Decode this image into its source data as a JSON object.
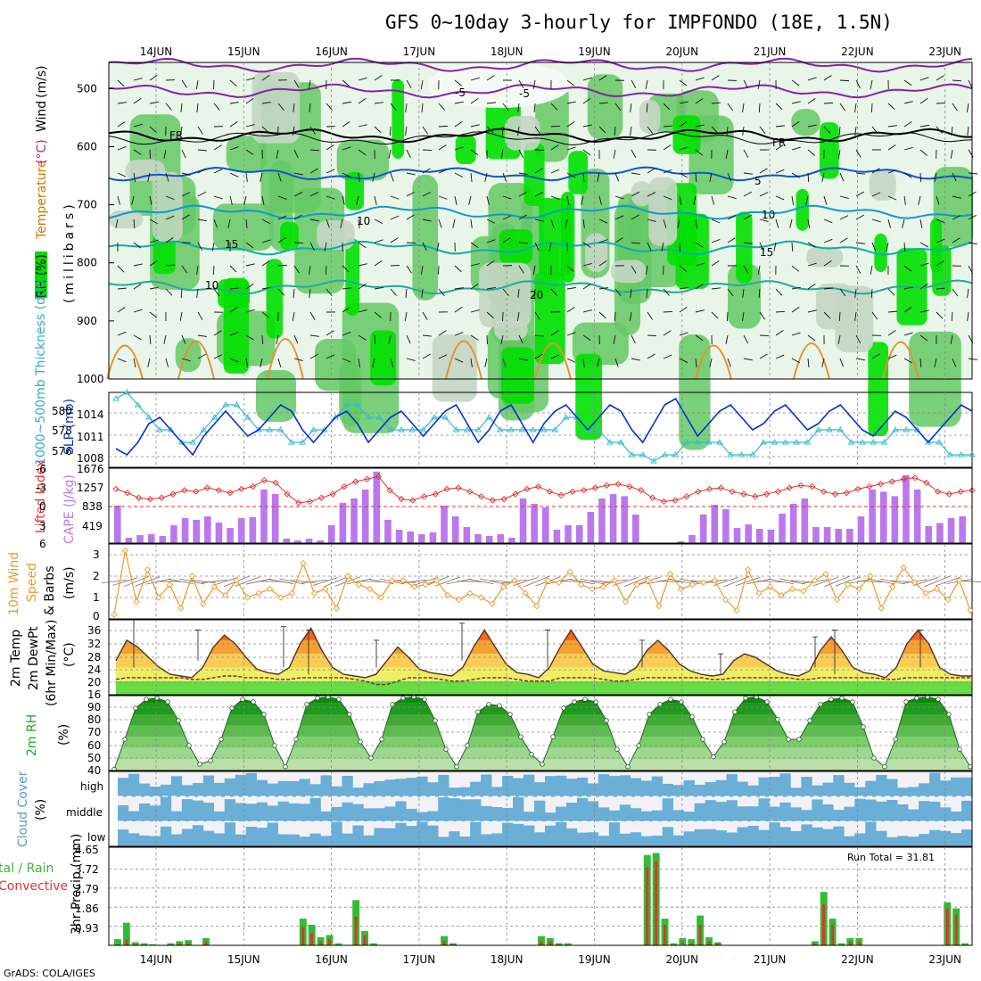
{
  "title": "GFS 0~10day 3-hourly for IMPFONDO (18E, 1.5N)",
  "credit": "GrADS: COLA/IGES",
  "days": [
    "14JUN",
    "15JUN",
    "16JUN",
    "17JUN",
    "18JUN",
    "19JUN",
    "20JUN",
    "21JUN",
    "22JUN",
    "23JUN"
  ],
  "colors": {
    "rh_light": "#a8d8a8",
    "rh_mid": "#64c864",
    "rh_bright": "#00e000",
    "slp": "#0033cc",
    "thick": "#33bbcc",
    "lifted": "#dd3333",
    "cape": "#bb77ee",
    "wind": "#ee9922",
    "rain": "#dd3333",
    "total": "#33bb33",
    "cloud": "#6baed6",
    "cloud_bg": "#f2f2f6"
  },
  "panels": {
    "upper": {
      "ylabel_parts": [
        "RH (%)",
        "Temperature",
        "(°C)",
        "Wind",
        "(m/s)"
      ],
      "ylabel2": "(millibars)",
      "ticks": [
        "500",
        "600",
        "700",
        "800",
        "900",
        "1000"
      ],
      "contour_labels": [
        "-5",
        "-5",
        "FR",
        "FR",
        "5",
        "10",
        "10",
        "15",
        "15",
        "20",
        "10"
      ]
    },
    "slp": {
      "ylabel": "SLP (mb)",
      "ylabel2": "1000~500mb Thickness (dm)",
      "ticks_left": [
        "580",
        "578",
        "576"
      ],
      "ticks_right": [
        "1014",
        "1011",
        "1008"
      ]
    },
    "cape": {
      "ylabel": "Lifted Index",
      "ylabel2": "CAPE (J/kg)",
      "ticks_left": [
        "-6",
        "-3",
        "0",
        "3",
        "6"
      ],
      "ticks_right": [
        "1676",
        "1257",
        "838",
        "419"
      ]
    },
    "wind10": {
      "ylabel": "10m Wind",
      "ylabel2": "Speed",
      "ylabel3": "& Barbs",
      "ylabel4": "(m/s)",
      "ticks": [
        "3",
        "2",
        "1",
        "0"
      ]
    },
    "t2m": {
      "ylabel": "2m Temp",
      "ylabel2": "2m DewPt",
      "ylabel3": "(6hr Min/Max)",
      "ylabel4": "(°C)",
      "ticks": [
        "36",
        "32",
        "28",
        "24",
        "20",
        "16"
      ]
    },
    "rh2m": {
      "ylabel": "2m RH",
      "ylabel2": "(%)",
      "ticks": [
        "90",
        "80",
        "70",
        "60",
        "50",
        "40"
      ]
    },
    "cloud": {
      "ylabel": "Cloud Cover",
      "ylabel2": "(%)",
      "levels": [
        "high",
        "middle",
        "low"
      ]
    },
    "precip": {
      "ylabel": "tal / Rain",
      "ylabel2": "Convective",
      "ylabel3": "3hr Precip (mm)",
      "ticks": [
        "4.65",
        "3.72",
        "2.79",
        "1.86",
        "0.93",
        "0"
      ],
      "run_total": "Run Total = 31.81"
    }
  },
  "chart_data": [
    {
      "type": "line",
      "title": "SLP (mb)",
      "ylim": [
        1006,
        1018
      ],
      "x_step_hours": 6,
      "series": [
        {
          "name": "SLP",
          "values": [
            1009,
            1008,
            1010,
            1013,
            1014,
            1012,
            1010,
            1008,
            1011,
            1013,
            1015,
            1013,
            1011,
            1012,
            1014,
            1016,
            1015,
            1012,
            1010,
            1012,
            1014,
            1015,
            1013,
            1010,
            1012,
            1014,
            1015,
            1013,
            1011,
            1013,
            1015,
            1016,
            1013,
            1010,
            1012,
            1015,
            1016,
            1013,
            1010,
            1013,
            1015,
            1016,
            1014,
            1012,
            1014,
            1016,
            1015,
            1012,
            1010,
            1013,
            1016,
            1017,
            1014,
            1011,
            1013,
            1015,
            1016,
            1014,
            1012,
            1013,
            1015,
            1016,
            1014,
            1012,
            1013,
            1015,
            1016,
            1014,
            1012,
            1011,
            1013,
            1015,
            1014,
            1012,
            1010,
            1012,
            1014,
            1016,
            1015
          ]
        }
      ]
    },
    {
      "type": "line",
      "title": "1000~500mb Thickness (dm)",
      "ylim": [
        575,
        581
      ],
      "series": [
        {
          "name": "Thickness",
          "values": [
            580.5,
            581,
            580,
            579,
            578,
            578,
            577,
            577,
            578,
            579,
            580,
            580,
            579,
            578,
            578,
            578,
            577,
            577,
            578,
            578,
            579,
            580,
            580,
            579,
            579,
            578,
            578,
            578,
            578,
            579,
            579,
            578,
            578,
            578,
            579,
            578,
            578,
            578,
            578,
            578,
            578,
            579,
            579,
            578,
            578,
            577,
            577,
            576,
            576,
            575.5,
            576,
            576,
            577,
            577,
            577,
            577,
            576,
            576,
            576,
            577,
            577,
            577,
            577,
            577,
            578,
            578,
            578,
            577,
            577,
            577,
            577,
            578,
            578,
            578,
            577,
            577,
            576,
            576,
            576
          ]
        }
      ]
    },
    {
      "type": "bar",
      "title": "CAPE (J/kg)",
      "ylim": [
        0,
        1676
      ],
      "values": [
        838,
        120,
        180,
        200,
        160,
        400,
        560,
        520,
        600,
        460,
        340,
        560,
        580,
        1200,
        1100,
        100,
        60,
        100,
        60,
        400,
        900,
        1000,
        1200,
        1600,
        520,
        300,
        260,
        200,
        240,
        840,
        600,
        360,
        200,
        160,
        200,
        120,
        1000,
        880,
        800,
        300,
        400,
        400,
        700,
        1000,
        1100,
        1050,
        640,
        0,
        0,
        0,
        40,
        180,
        640,
        860,
        760,
        340,
        420,
        320,
        300,
        660,
        880,
        1000,
        360,
        360,
        320,
        320,
        600,
        1200,
        1150,
        1050,
        1520,
        1200,
        380,
        450,
        560,
        600
      ]
    },
    {
      "type": "line",
      "title": "Lifted Index",
      "ylim": [
        -6,
        6
      ],
      "values": [
        -2.8,
        -2.2,
        -1.4,
        -1.2,
        -1.4,
        -2,
        -2.6,
        -2.4,
        -3,
        -2.6,
        -2.2,
        -2.8,
        -3.2,
        -4.2,
        -3.8,
        -2,
        -0.6,
        -0.8,
        -1.4,
        -2,
        -3.2,
        -4,
        -4.4,
        -4.8,
        -2.6,
        -1.2,
        -1,
        -1.6,
        -2,
        -2.8,
        -3,
        -2.4,
        -1.6,
        -1,
        -1.2,
        -2,
        -2.8,
        -3.2,
        -2.4,
        -1.8,
        -2.4,
        -2.6,
        -3,
        -3.4,
        -3.6,
        -3.2,
        -2.6,
        -1.4,
        -0.8,
        -1,
        -1.6,
        -2.4,
        -2.8,
        -3,
        -2.4,
        -2,
        -1.6,
        -2,
        -2.4,
        -3,
        -3.4,
        -3.2,
        -2.4,
        -2,
        -2.2,
        -2.8,
        -3.2,
        -3.6,
        -4,
        -4.4,
        -4.6,
        -3.8,
        -2.4,
        -2,
        -2.4,
        -2.6
      ]
    },
    {
      "type": "line",
      "title": "10m Wind Speed (m/s)",
      "ylim": [
        0,
        3.5
      ],
      "values": [
        0.2,
        3.2,
        0.8,
        2.3,
        1,
        1.6,
        0.5,
        2,
        0.7,
        1.5,
        1.1,
        1.8,
        1,
        1.2,
        1.4,
        1,
        1.2,
        2.6,
        1.2,
        1.4,
        0.5,
        2,
        1.6,
        1.4,
        1,
        1.8,
        1.8,
        1.5,
        1.6,
        1.8,
        1.1,
        0.9,
        1.2,
        1,
        0.7,
        1.5,
        1.8,
        1.2,
        0.6,
        1.8,
        1.7,
        2.2,
        1.6,
        1.4,
        1.5,
        1.8,
        0.8,
        1.6,
        1.8,
        0.6,
        2.1,
        1.4,
        1.6,
        1.7,
        1.8,
        0.9,
        0.4,
        2.3,
        1.2,
        1.5,
        1.1,
        1.4,
        1.3,
        1.8,
        2.1,
        0.9,
        1.6,
        1.4,
        2,
        0.5,
        1.5,
        2.4,
        1.7,
        1.2,
        1.4,
        0.9,
        1.8,
        0.4
      ]
    },
    {
      "type": "area",
      "title": "2m Temp / DewPt (°C)",
      "ylim": [
        16,
        38
      ],
      "series": [
        {
          "name": "2m Temp",
          "values": [
            26,
            32,
            30,
            27,
            24,
            22,
            21.5,
            21,
            24,
            30,
            33.5,
            31,
            27,
            23.5,
            22.5,
            22,
            24,
            31,
            35.5,
            29,
            24,
            22,
            21.5,
            21,
            22,
            26,
            30,
            27,
            23.5,
            22.5,
            22,
            21.5,
            24,
            30,
            35,
            30,
            25,
            22.5,
            22,
            21,
            24,
            30,
            35,
            30,
            25,
            23,
            22.5,
            22,
            24,
            29,
            32,
            29,
            25,
            23,
            22,
            21.5,
            22,
            26,
            28,
            27,
            25,
            23,
            22,
            21.5,
            23,
            29,
            33,
            29,
            24,
            22.5,
            22,
            21,
            24,
            31,
            35,
            31,
            24,
            22,
            21.5,
            21.5
          ]
        },
        {
          "name": "2m DewPt",
          "values": [
            20.5,
            21,
            21,
            21,
            21,
            21,
            21,
            20.5,
            20.5,
            21,
            21.5,
            21.5,
            21,
            21,
            21,
            20.5,
            20.5,
            21,
            21,
            21,
            21,
            21,
            20.5,
            20,
            19,
            19,
            20,
            21,
            21,
            21,
            20.5,
            20,
            20,
            20.5,
            21,
            21,
            21,
            20.5,
            20,
            20,
            20,
            21,
            21,
            21,
            21,
            20.5,
            20,
            20,
            20.5,
            21,
            21,
            21,
            21,
            21,
            21,
            20.5,
            20.5,
            21,
            21,
            21,
            21,
            21,
            21,
            20.5,
            20.5,
            21,
            21,
            21,
            21,
            21,
            21,
            20.5,
            20.5,
            21,
            21,
            21,
            21,
            21,
            21,
            21
          ]
        }
      ]
    },
    {
      "type": "area",
      "title": "2m RH (%)",
      "ylim": [
        35,
        95
      ],
      "values": [
        36,
        60,
        85,
        92,
        93,
        90,
        75,
        55,
        40,
        43,
        60,
        85,
        92,
        90,
        80,
        55,
        38,
        60,
        88,
        93,
        94,
        92,
        80,
        58,
        45,
        60,
        88,
        93,
        94,
        92,
        75,
        52,
        38,
        55,
        82,
        88,
        87,
        80,
        62,
        48,
        40,
        62,
        85,
        90,
        92,
        90,
        75,
        52,
        38,
        55,
        80,
        88,
        92,
        90,
        78,
        60,
        46,
        58,
        82,
        93,
        94,
        90,
        76,
        60,
        60,
        75,
        88,
        92,
        93,
        90,
        70,
        45,
        38,
        60,
        90,
        93,
        94,
        92,
        80,
        52,
        38
      ]
    },
    {
      "type": "bar",
      "title": "3hr Precip (mm)",
      "ylim": [
        0,
        4.65
      ],
      "series": [
        {
          "name": "Total",
          "values": [
            0.3,
            1.1,
            0.15,
            0.1,
            0.05,
            0,
            0.1,
            0.2,
            0.25,
            0,
            0.35,
            0,
            0,
            0,
            0,
            0,
            0,
            0,
            0,
            0,
            0,
            1.3,
            1.0,
            0.4,
            0.5,
            0.1,
            0,
            2.2,
            0.7,
            0.1,
            0,
            0,
            0,
            0,
            0,
            0,
            0,
            0.45,
            0.1,
            0,
            0,
            0,
            0,
            0,
            0,
            0,
            0,
            0,
            0.45,
            0.35,
            0.1,
            0.1,
            0,
            0,
            0,
            0,
            0,
            0,
            0,
            0,
            4.4,
            4.5,
            1.3,
            0.1,
            0.35,
            0.3,
            1.45,
            0.4,
            0.15,
            0,
            0,
            0,
            0,
            0,
            0,
            0,
            0,
            0,
            0,
            0.2,
            2.6,
            1.3,
            0.1,
            0.35,
            0.35,
            0,
            0,
            0,
            0,
            0,
            0,
            0,
            0,
            0,
            2.1,
            1.8,
            0.1
          ]
        },
        {
          "name": "Convective",
          "values": [
            0.05,
            0.3,
            0.05,
            0,
            0,
            0,
            0,
            0.1,
            0.1,
            0,
            0.2,
            0,
            0,
            0,
            0,
            0,
            0,
            0,
            0,
            0,
            0,
            0.9,
            0.6,
            0.2,
            0.3,
            0,
            0,
            1.4,
            0.5,
            0,
            0,
            0,
            0,
            0,
            0,
            0,
            0,
            0.2,
            0.05,
            0,
            0,
            0,
            0,
            0,
            0,
            0,
            0,
            0,
            0.2,
            0.2,
            0.05,
            0,
            0,
            0,
            0,
            0,
            0,
            0,
            0,
            0,
            3.8,
            4.1,
            1.0,
            0,
            0.2,
            0.1,
            1.0,
            0.2,
            0.1,
            0,
            0,
            0,
            0,
            0,
            0,
            0,
            0,
            0,
            0,
            0.1,
            2.0,
            1.0,
            0,
            0.2,
            0.2,
            0,
            0,
            0,
            0,
            0,
            0,
            0,
            0,
            0,
            1.8,
            1.5,
            0
          ]
        }
      ]
    }
  ]
}
